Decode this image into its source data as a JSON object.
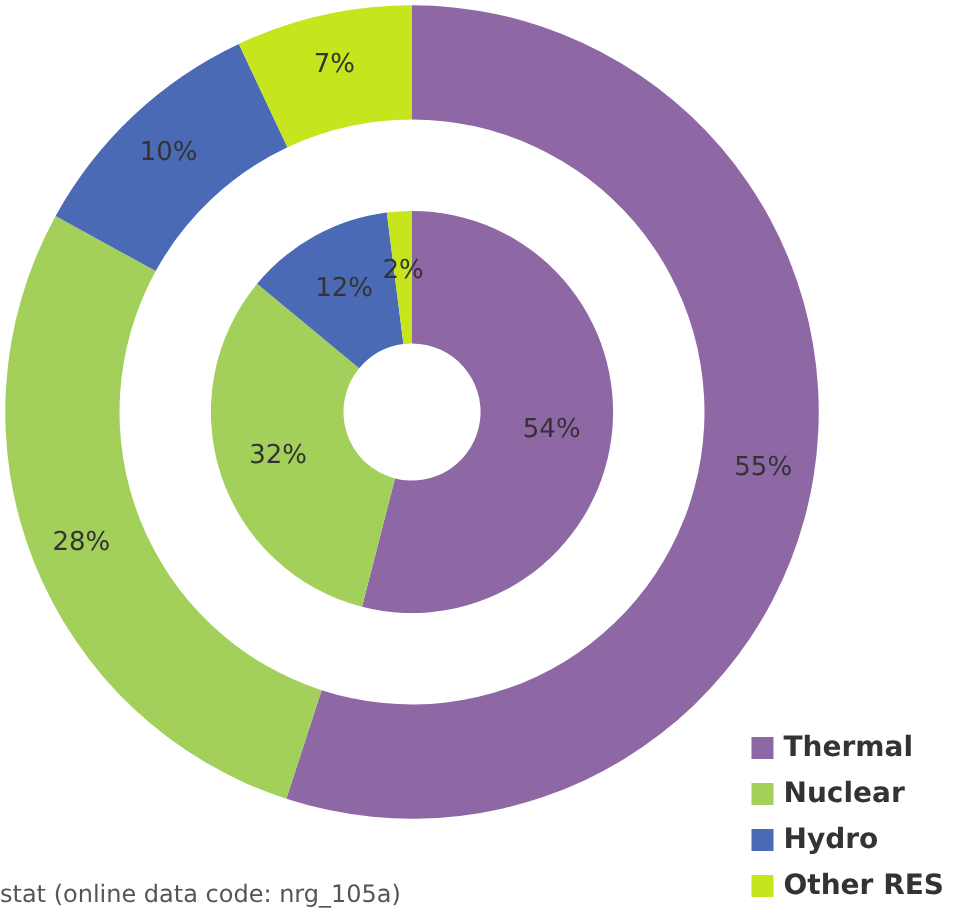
{
  "chart_data": {
    "type": "donut",
    "categories": [
      "Thermal",
      "Nuclear",
      "Hydro",
      "Other RES"
    ],
    "colors": [
      "#8e67a5",
      "#a2d05a",
      "#4a6ab6",
      "#c6e51c"
    ],
    "series": [
      {
        "values": [
          55,
          28,
          10,
          7
        ],
        "value_labels": [
          "55%",
          "28%",
          "10%",
          "7%"
        ]
      },
      {
        "values": [
          54,
          32,
          12,
          2
        ],
        "value_labels": [
          "54%",
          "32%",
          "12%",
          "2%"
        ]
      }
    ],
    "legend": "bottom right",
    "annotations": [
      "stat (online data code: nrg_105a)"
    ]
  }
}
